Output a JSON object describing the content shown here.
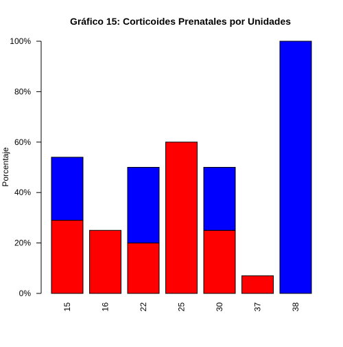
{
  "chart_data": {
    "type": "bar",
    "stacked": true,
    "title": "Gráfico 15: Corticoides Prenatales por Unidades",
    "xlabel": "",
    "ylabel": "Porcentaje",
    "categories": [
      "15",
      "16",
      "22",
      "25",
      "30",
      "37",
      "38"
    ],
    "series": [
      {
        "color": "#ff0000",
        "values": [
          29,
          25,
          20,
          60,
          25,
          7,
          0
        ]
      },
      {
        "color": "#0000ff",
        "values": [
          25,
          0,
          30,
          0,
          25,
          0,
          100
        ]
      }
    ],
    "ylim": [
      0,
      100
    ],
    "y_ticks": [
      0,
      20,
      40,
      60,
      80,
      100
    ],
    "y_tick_labels": [
      "0%",
      "20%",
      "40%",
      "60%",
      "80%",
      "100%"
    ],
    "grid": false,
    "legend": "none"
  }
}
